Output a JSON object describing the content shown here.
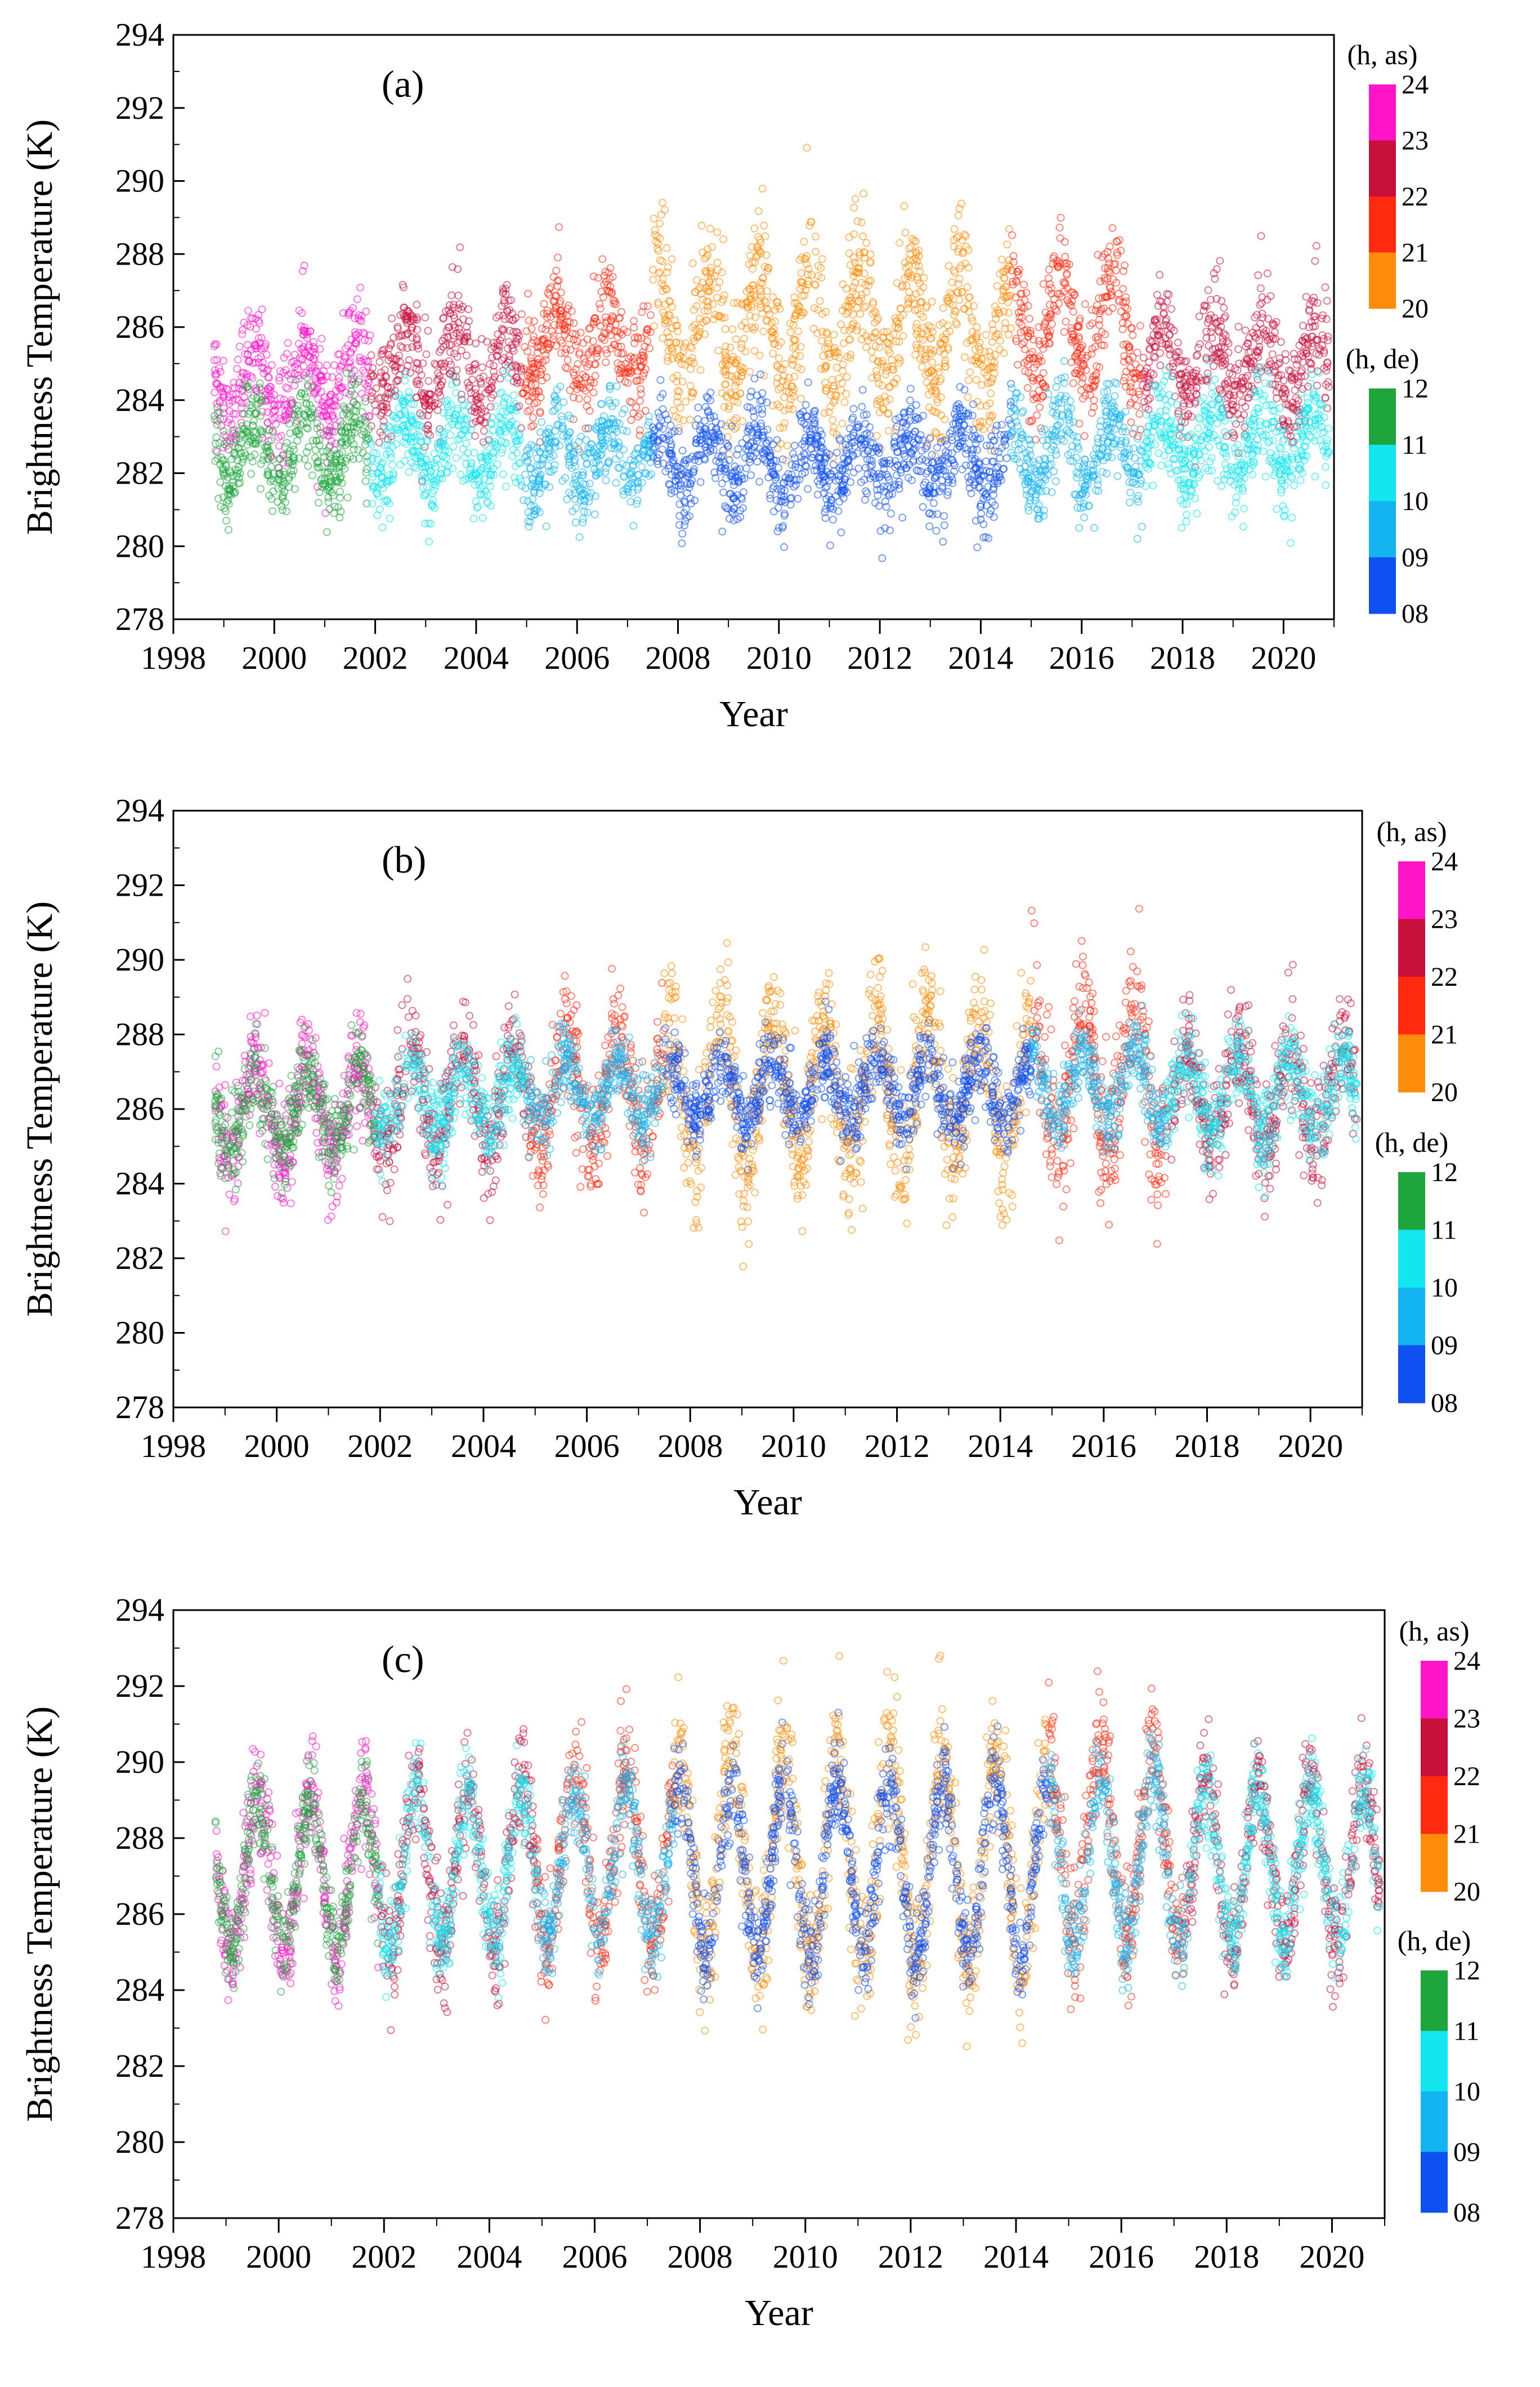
{
  "chart_data": [
    {
      "type": "scatter",
      "panel_label": "(a)",
      "xlabel": "Year",
      "ylabel": "Brightness Temperature (K)",
      "xlim": [
        1998,
        2021
      ],
      "ylim": [
        278,
        294
      ],
      "x_ticks": [
        "1998",
        "2000",
        "2002",
        "2004",
        "2006",
        "2008",
        "2010",
        "2012",
        "2014",
        "2016",
        "2018",
        "2020"
      ],
      "y_ticks": [
        "278",
        "280",
        "282",
        "284",
        "286",
        "288",
        "290",
        "292",
        "294"
      ],
      "series": [
        {
          "name": "(h, as)",
          "segments": [
            {
              "x0": 1998.8,
              "x1": 2001.9,
              "color": "#ff14c8",
              "mean": 284.6,
              "amp": 1.0,
              "noise": 0.7
            },
            {
              "x0": 2001.9,
              "x1": 2004.9,
              "color": "#c8103c",
              "mean": 285.0,
              "amp": 1.1,
              "noise": 0.7
            },
            {
              "x0": 2004.9,
              "x1": 2007.5,
              "color": "#ff2a10",
              "mean": 285.5,
              "amp": 1.1,
              "noise": 0.7
            },
            {
              "x0": 2007.5,
              "x1": 2014.6,
              "color": "#ff8c0a",
              "mean": 286.0,
              "amp": 1.6,
              "noise": 0.9
            },
            {
              "x0": 2014.6,
              "x1": 2017.2,
              "color": "#ff2a10",
              "mean": 286.0,
              "amp": 1.6,
              "noise": 0.8
            },
            {
              "x0": 2017.2,
              "x1": 2020.9,
              "color": "#c8103c",
              "mean": 285.0,
              "amp": 1.0,
              "noise": 0.7
            }
          ]
        },
        {
          "name": "(h, de)",
          "segments": [
            {
              "x0": 1998.8,
              "x1": 2001.9,
              "color": "#1ea53c",
              "mean": 282.6,
              "amp": 0.9,
              "noise": 0.6
            },
            {
              "x0": 2001.9,
              "x1": 2004.9,
              "color": "#14e6f0",
              "mean": 282.6,
              "amp": 0.9,
              "noise": 0.6
            },
            {
              "x0": 2004.9,
              "x1": 2007.5,
              "color": "#14b4f0",
              "mean": 282.4,
              "amp": 0.8,
              "noise": 0.6
            },
            {
              "x0": 2007.5,
              "x1": 2014.6,
              "color": "#0f50f0",
              "mean": 282.3,
              "amp": 0.8,
              "noise": 0.6
            },
            {
              "x0": 2014.6,
              "x1": 2017.2,
              "color": "#14b4f0",
              "mean": 282.6,
              "amp": 0.9,
              "noise": 0.6
            },
            {
              "x0": 2017.2,
              "x1": 2020.9,
              "color": "#14e6f0",
              "mean": 282.8,
              "amp": 0.9,
              "noise": 0.6
            }
          ]
        }
      ],
      "colorbar": {
        "as_title": "(h, as)",
        "as_labels": [
          "24",
          "23",
          "22",
          "21",
          "20"
        ],
        "as_colors": [
          "#ff14c8",
          "#c8103c",
          "#ff2a10",
          "#ff8c0a"
        ],
        "de_title": "(h, de)",
        "de_labels": [
          "12",
          "11",
          "10",
          "09",
          "08"
        ],
        "de_colors": [
          "#1ea53c",
          "#14e6f0",
          "#14b4f0",
          "#0f50f0"
        ]
      }
    },
    {
      "type": "scatter",
      "panel_label": "(b)",
      "xlabel": "Year",
      "ylabel": "Brightness Temperature (K)",
      "xlim": [
        1998,
        2021
      ],
      "ylim": [
        278,
        294
      ],
      "x_ticks": [
        "1998",
        "2000",
        "2002",
        "2004",
        "2006",
        "2008",
        "2010",
        "2012",
        "2014",
        "2016",
        "2018",
        "2020"
      ],
      "y_ticks": [
        "278",
        "280",
        "282",
        "284",
        "286",
        "288",
        "290",
        "292",
        "294"
      ],
      "series": [
        {
          "name": "(h, as)",
          "segments": [
            {
              "x0": 1998.8,
              "x1": 2001.9,
              "color": "#ff14c8",
              "mean": 286.0,
              "amp": 1.3,
              "noise": 0.7
            },
            {
              "x0": 2001.9,
              "x1": 2004.9,
              "color": "#c8103c",
              "mean": 286.3,
              "amp": 1.4,
              "noise": 0.7
            },
            {
              "x0": 2004.9,
              "x1": 2007.5,
              "color": "#ff2a10",
              "mean": 286.5,
              "amp": 1.6,
              "noise": 0.8
            },
            {
              "x0": 2007.5,
              "x1": 2014.6,
              "color": "#ff8c0a",
              "mean": 286.5,
              "amp": 2.0,
              "noise": 0.9
            },
            {
              "x0": 2014.6,
              "x1": 2017.2,
              "color": "#ff2a10",
              "mean": 286.8,
              "amp": 2.0,
              "noise": 0.9
            },
            {
              "x0": 2017.2,
              "x1": 2020.9,
              "color": "#c8103c",
              "mean": 286.3,
              "amp": 1.4,
              "noise": 0.7
            }
          ]
        },
        {
          "name": "(h, de)",
          "segments": [
            {
              "x0": 1998.8,
              "x1": 2001.9,
              "color": "#1ea53c",
              "mean": 286.0,
              "amp": 1.0,
              "noise": 0.6
            },
            {
              "x0": 2001.9,
              "x1": 2004.9,
              "color": "#14e6f0",
              "mean": 286.3,
              "amp": 0.9,
              "noise": 0.6
            },
            {
              "x0": 2004.9,
              "x1": 2007.5,
              "color": "#14b4f0",
              "mean": 286.5,
              "amp": 0.8,
              "noise": 0.5
            },
            {
              "x0": 2007.5,
              "x1": 2014.6,
              "color": "#0f50f0",
              "mean": 286.5,
              "amp": 0.8,
              "noise": 0.5
            },
            {
              "x0": 2014.6,
              "x1": 2017.2,
              "color": "#14b4f0",
              "mean": 286.6,
              "amp": 0.9,
              "noise": 0.5
            },
            {
              "x0": 2017.2,
              "x1": 2020.9,
              "color": "#14e6f0",
              "mean": 286.4,
              "amp": 1.0,
              "noise": 0.6
            }
          ]
        }
      ],
      "colorbar": {
        "as_title": "(h, as)",
        "as_labels": [
          "24",
          "23",
          "22",
          "21",
          "20"
        ],
        "as_colors": [
          "#ff14c8",
          "#c8103c",
          "#ff2a10",
          "#ff8c0a"
        ],
        "de_title": "(h, de)",
        "de_labels": [
          "12",
          "11",
          "10",
          "09",
          "08"
        ],
        "de_colors": [
          "#1ea53c",
          "#14e6f0",
          "#14b4f0",
          "#0f50f0"
        ]
      }
    },
    {
      "type": "scatter",
      "panel_label": "(c)",
      "xlabel": "Year",
      "ylabel": "Brightness Temperature (K)",
      "xlim": [
        1998,
        2021
      ],
      "ylim": [
        278,
        294
      ],
      "x_ticks": [
        "1998",
        "2000",
        "2002",
        "2004",
        "2006",
        "2008",
        "2010",
        "2012",
        "2014",
        "2016",
        "2018",
        "2020"
      ],
      "y_ticks": [
        "278",
        "280",
        "282",
        "284",
        "286",
        "288",
        "290",
        "292",
        "294"
      ],
      "series": [
        {
          "name": "(h, as)",
          "segments": [
            {
              "x0": 1998.8,
              "x1": 2001.9,
              "color": "#ff14c8",
              "mean": 287.0,
              "amp": 2.2,
              "noise": 0.7
            },
            {
              "x0": 2001.9,
              "x1": 2004.9,
              "color": "#c8103c",
              "mean": 287.3,
              "amp": 2.2,
              "noise": 0.7
            },
            {
              "x0": 2004.9,
              "x1": 2007.5,
              "color": "#ff2a10",
              "mean": 287.5,
              "amp": 2.3,
              "noise": 0.8
            },
            {
              "x0": 2007.5,
              "x1": 2014.6,
              "color": "#ff8c0a",
              "mean": 287.4,
              "amp": 2.8,
              "noise": 0.9
            },
            {
              "x0": 2014.6,
              "x1": 2017.2,
              "color": "#ff2a10",
              "mean": 287.8,
              "amp": 2.6,
              "noise": 0.8
            },
            {
              "x0": 2017.2,
              "x1": 2020.9,
              "color": "#c8103c",
              "mean": 287.3,
              "amp": 2.2,
              "noise": 0.7
            }
          ]
        },
        {
          "name": "(h, de)",
          "segments": [
            {
              "x0": 1998.8,
              "x1": 2001.9,
              "color": "#1ea53c",
              "mean": 287.0,
              "amp": 2.0,
              "noise": 0.6
            },
            {
              "x0": 2001.9,
              "x1": 2004.9,
              "color": "#14e6f0",
              "mean": 287.2,
              "amp": 2.0,
              "noise": 0.6
            },
            {
              "x0": 2004.9,
              "x1": 2007.5,
              "color": "#14b4f0",
              "mean": 287.3,
              "amp": 2.0,
              "noise": 0.6
            },
            {
              "x0": 2007.5,
              "x1": 2014.6,
              "color": "#0f50f0",
              "mean": 287.2,
              "amp": 2.3,
              "noise": 0.6
            },
            {
              "x0": 2014.6,
              "x1": 2017.2,
              "color": "#14b4f0",
              "mean": 287.4,
              "amp": 2.2,
              "noise": 0.6
            },
            {
              "x0": 2017.2,
              "x1": 2020.9,
              "color": "#14e6f0",
              "mean": 287.3,
              "amp": 2.0,
              "noise": 0.6
            }
          ]
        }
      ],
      "colorbar": {
        "as_title": "(h, as)",
        "as_labels": [
          "24",
          "23",
          "22",
          "21",
          "20"
        ],
        "as_colors": [
          "#ff14c8",
          "#c8103c",
          "#ff2a10",
          "#ff8c0a"
        ],
        "de_title": "(h, de)",
        "de_labels": [
          "12",
          "11",
          "10",
          "09",
          "08"
        ],
        "de_colors": [
          "#1ea53c",
          "#14e6f0",
          "#14b4f0",
          "#0f50f0"
        ]
      }
    }
  ]
}
